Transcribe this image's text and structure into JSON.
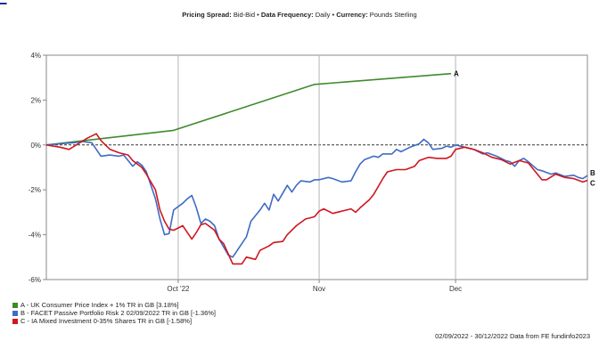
{
  "info": {
    "spread_label": "Pricing Spread:",
    "spread_value": "Bid-Bid",
    "freq_label": "Data Frequency:",
    "freq_value": "Daily",
    "currency_label": "Currency:",
    "currency_value": "Pounds Sterling",
    "separator": "•"
  },
  "footer": "02/09/2022 - 30/12/2022 Data from FE fundinfo2023",
  "colors": {
    "A": "#3f8a2b",
    "B": "#3f6bc4",
    "C": "#d0161f"
  },
  "chart_data": {
    "type": "line",
    "x_range": [
      "2022-09-02",
      "2022-12-30"
    ],
    "ylim": [
      -6,
      4
    ],
    "yticks": [
      4,
      2,
      0,
      -2,
      -4,
      -6
    ],
    "ytick_labels": [
      "4%",
      "2%",
      "0%",
      "-2%",
      "-4%",
      "-6%"
    ],
    "xticks": [
      {
        "date": "2022-10-01",
        "label": "Oct '22"
      },
      {
        "date": "2022-11-01",
        "label": "Nov"
      },
      {
        "date": "2022-12-01",
        "label": "Dec"
      }
    ],
    "grid": "vertical at x ticks, zero line",
    "legend_placement": "bottom-left",
    "series": [
      {
        "key": "A",
        "name": "A - UK Consumer Price Index + 1% TR in GB [3.18%]",
        "end_label": "A",
        "points": [
          [
            "2022-09-02",
            0.0
          ],
          [
            "2022-09-30",
            0.65
          ],
          [
            "2022-10-31",
            2.7
          ],
          [
            "2022-11-30",
            3.18
          ]
        ]
      },
      {
        "key": "B",
        "name": "B - FACET Passive Portfolio Risk 2 02/09/2022 TR in GB [-1.36%]",
        "end_label": "B",
        "points": [
          [
            "2022-09-02",
            0.0
          ],
          [
            "2022-09-05",
            0.05
          ],
          [
            "2022-09-08",
            0.1
          ],
          [
            "2022-09-10",
            0.15
          ],
          [
            "2022-09-12",
            0.1
          ],
          [
            "2022-09-14",
            -0.5
          ],
          [
            "2022-09-16",
            -0.45
          ],
          [
            "2022-09-18",
            -0.5
          ],
          [
            "2022-09-19",
            -0.45
          ],
          [
            "2022-09-20",
            -0.7
          ],
          [
            "2022-09-21",
            -0.95
          ],
          [
            "2022-09-22",
            -0.75
          ],
          [
            "2022-09-23",
            -0.9
          ],
          [
            "2022-09-24",
            -1.2
          ],
          [
            "2022-09-26",
            -2.4
          ],
          [
            "2022-09-27",
            -3.3
          ],
          [
            "2022-09-28",
            -4.0
          ],
          [
            "2022-09-29",
            -3.95
          ],
          [
            "2022-09-30",
            -2.9
          ],
          [
            "2022-10-02",
            -2.6
          ],
          [
            "2022-10-03",
            -2.4
          ],
          [
            "2022-10-04",
            -2.25
          ],
          [
            "2022-10-05",
            -2.8
          ],
          [
            "2022-10-06",
            -3.5
          ],
          [
            "2022-10-07",
            -3.3
          ],
          [
            "2022-10-08",
            -3.4
          ],
          [
            "2022-10-09",
            -3.6
          ],
          [
            "2022-10-10",
            -4.2
          ],
          [
            "2022-10-12",
            -4.9
          ],
          [
            "2022-10-13",
            -5.0
          ],
          [
            "2022-10-14",
            -4.7
          ],
          [
            "2022-10-16",
            -4.1
          ],
          [
            "2022-10-17",
            -3.4
          ],
          [
            "2022-10-19",
            -2.9
          ],
          [
            "2022-10-20",
            -2.6
          ],
          [
            "2022-10-21",
            -2.9
          ],
          [
            "2022-10-22",
            -2.2
          ],
          [
            "2022-10-23",
            -2.5
          ],
          [
            "2022-10-25",
            -1.8
          ],
          [
            "2022-10-26",
            -2.1
          ],
          [
            "2022-10-27",
            -1.8
          ],
          [
            "2022-10-28",
            -1.6
          ],
          [
            "2022-10-30",
            -1.65
          ],
          [
            "2022-10-31",
            -1.55
          ],
          [
            "2022-11-01",
            -1.55
          ],
          [
            "2022-11-03",
            -1.45
          ],
          [
            "2022-11-04",
            -1.5
          ],
          [
            "2022-11-06",
            -1.65
          ],
          [
            "2022-11-08",
            -1.6
          ],
          [
            "2022-11-09",
            -1.2
          ],
          [
            "2022-11-10",
            -0.85
          ],
          [
            "2022-11-11",
            -0.65
          ],
          [
            "2022-11-13",
            -0.5
          ],
          [
            "2022-11-14",
            -0.55
          ],
          [
            "2022-11-15",
            -0.4
          ],
          [
            "2022-11-17",
            -0.4
          ],
          [
            "2022-11-18",
            -0.2
          ],
          [
            "2022-11-19",
            -0.3
          ],
          [
            "2022-11-21",
            -0.1
          ],
          [
            "2022-11-23",
            0.05
          ],
          [
            "2022-11-24",
            0.25
          ],
          [
            "2022-11-25",
            0.1
          ],
          [
            "2022-11-26",
            -0.2
          ],
          [
            "2022-11-28",
            -0.15
          ],
          [
            "2022-11-29",
            -0.05
          ],
          [
            "2022-11-30",
            -0.1
          ],
          [
            "2022-12-01",
            0.0
          ],
          [
            "2022-12-03",
            -0.1
          ],
          [
            "2022-12-05",
            -0.2
          ],
          [
            "2022-12-07",
            -0.4
          ],
          [
            "2022-12-08",
            -0.35
          ],
          [
            "2022-12-10",
            -0.5
          ],
          [
            "2022-12-12",
            -0.7
          ],
          [
            "2022-12-13",
            -0.75
          ],
          [
            "2022-12-14",
            -0.95
          ],
          [
            "2022-12-15",
            -0.7
          ],
          [
            "2022-12-16",
            -0.6
          ],
          [
            "2022-12-17",
            -0.75
          ],
          [
            "2022-12-19",
            -1.1
          ],
          [
            "2022-12-20",
            -1.15
          ],
          [
            "2022-12-22",
            -1.3
          ],
          [
            "2022-12-23",
            -1.25
          ],
          [
            "2022-12-25",
            -1.4
          ],
          [
            "2022-12-27",
            -1.35
          ],
          [
            "2022-12-28",
            -1.45
          ],
          [
            "2022-12-29",
            -1.5
          ],
          [
            "2022-12-30",
            -1.36
          ]
        ]
      },
      {
        "key": "C",
        "name": "C - IA Mixed Investment 0-35% Shares TR in GB [-1.58%]",
        "end_label": "C",
        "points": [
          [
            "2022-09-02",
            0.0
          ],
          [
            "2022-09-05",
            -0.1
          ],
          [
            "2022-09-07",
            -0.2
          ],
          [
            "2022-09-09",
            0.05
          ],
          [
            "2022-09-11",
            0.3
          ],
          [
            "2022-09-13",
            0.5
          ],
          [
            "2022-09-14",
            0.2
          ],
          [
            "2022-09-16",
            -0.2
          ],
          [
            "2022-09-18",
            -0.35
          ],
          [
            "2022-09-20",
            -0.45
          ],
          [
            "2022-09-21",
            -0.7
          ],
          [
            "2022-09-23",
            -1.0
          ],
          [
            "2022-09-24",
            -1.3
          ],
          [
            "2022-09-26",
            -2.0
          ],
          [
            "2022-09-27",
            -2.9
          ],
          [
            "2022-09-28",
            -3.4
          ],
          [
            "2022-09-29",
            -3.75
          ],
          [
            "2022-09-30",
            -3.8
          ],
          [
            "2022-10-02",
            -3.6
          ],
          [
            "2022-10-03",
            -3.9
          ],
          [
            "2022-10-04",
            -4.2
          ],
          [
            "2022-10-05",
            -3.9
          ],
          [
            "2022-10-06",
            -3.55
          ],
          [
            "2022-10-07",
            -3.5
          ],
          [
            "2022-10-09",
            -3.8
          ],
          [
            "2022-10-10",
            -4.2
          ],
          [
            "2022-10-11",
            -4.4
          ],
          [
            "2022-10-12",
            -4.85
          ],
          [
            "2022-10-13",
            -5.3
          ],
          [
            "2022-10-15",
            -5.3
          ],
          [
            "2022-10-16",
            -5.0
          ],
          [
            "2022-10-18",
            -5.1
          ],
          [
            "2022-10-19",
            -4.7
          ],
          [
            "2022-10-21",
            -4.5
          ],
          [
            "2022-10-22",
            -4.35
          ],
          [
            "2022-10-24",
            -4.3
          ],
          [
            "2022-10-25",
            -4.0
          ],
          [
            "2022-10-27",
            -3.6
          ],
          [
            "2022-10-29",
            -3.3
          ],
          [
            "2022-10-31",
            -3.2
          ],
          [
            "2022-11-01",
            -2.95
          ],
          [
            "2022-11-02",
            -2.85
          ],
          [
            "2022-11-04",
            -3.05
          ],
          [
            "2022-11-06",
            -2.95
          ],
          [
            "2022-11-08",
            -2.85
          ],
          [
            "2022-11-09",
            -3.0
          ],
          [
            "2022-11-10",
            -2.8
          ],
          [
            "2022-11-12",
            -2.45
          ],
          [
            "2022-11-13",
            -2.2
          ],
          [
            "2022-11-15",
            -1.5
          ],
          [
            "2022-11-16",
            -1.2
          ],
          [
            "2022-11-18",
            -1.1
          ],
          [
            "2022-11-20",
            -1.1
          ],
          [
            "2022-11-22",
            -0.95
          ],
          [
            "2022-11-23",
            -0.7
          ],
          [
            "2022-11-25",
            -0.55
          ],
          [
            "2022-11-27",
            -0.6
          ],
          [
            "2022-11-29",
            -0.6
          ],
          [
            "2022-11-30",
            -0.5
          ],
          [
            "2022-12-01",
            -0.2
          ],
          [
            "2022-12-03",
            -0.1
          ],
          [
            "2022-12-05",
            -0.2
          ],
          [
            "2022-12-07",
            -0.35
          ],
          [
            "2022-12-09",
            -0.55
          ],
          [
            "2022-12-11",
            -0.65
          ],
          [
            "2022-12-13",
            -0.85
          ],
          [
            "2022-12-15",
            -0.7
          ],
          [
            "2022-12-17",
            -0.8
          ],
          [
            "2022-12-19",
            -1.3
          ],
          [
            "2022-12-20",
            -1.55
          ],
          [
            "2022-12-21",
            -1.55
          ],
          [
            "2022-12-23",
            -1.3
          ],
          [
            "2022-12-25",
            -1.45
          ],
          [
            "2022-12-27",
            -1.5
          ],
          [
            "2022-12-29",
            -1.65
          ],
          [
            "2022-12-30",
            -1.58
          ]
        ]
      }
    ]
  }
}
